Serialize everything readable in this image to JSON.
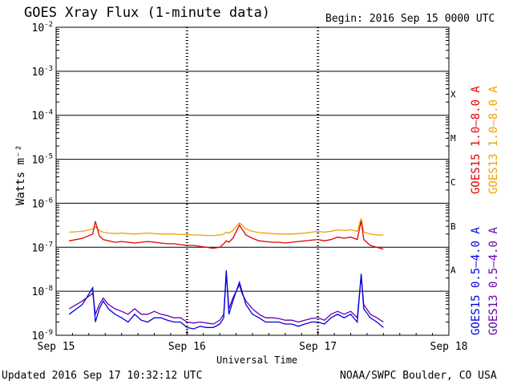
{
  "header": {
    "title": "GOES Xray Flux (1-minute data)",
    "begin": "Begin:  2016 Sep 15 0000 UTC"
  },
  "footer": {
    "updated": "Updated 2016 Sep 17 10:32:12 UTC",
    "credit": "NOAA/SWPC Boulder, CO USA"
  },
  "chart_data": {
    "type": "line",
    "title": "GOES Xray Flux (1-minute data)",
    "xlabel": "Universal Time",
    "ylabel": "Watts m⁻²",
    "yscale": "log",
    "ylim": [
      1e-09,
      0.01
    ],
    "y_ticks": [
      {
        "base": "10",
        "exp": "-9",
        "value": 1e-09
      },
      {
        "base": "10",
        "exp": "-8",
        "value": 1e-08
      },
      {
        "base": "10",
        "exp": "-7",
        "value": 1e-07
      },
      {
        "base": "10",
        "exp": "-6",
        "value": 1e-06
      },
      {
        "base": "10",
        "exp": "-5",
        "value": 1e-05
      },
      {
        "base": "10",
        "exp": "-4",
        "value": 0.0001
      },
      {
        "base": "10",
        "exp": "-3",
        "value": 0.001
      },
      {
        "base": "10",
        "exp": "-2",
        "value": 0.01
      }
    ],
    "x_unit": "days since 2016 Sep 15 00:00 UTC",
    "xlim": [
      0,
      3
    ],
    "x_ticks": [
      {
        "label": "Sep 15",
        "value": 0
      },
      {
        "label": "Sep 16",
        "value": 1
      },
      {
        "label": "Sep 17",
        "value": 2
      },
      {
        "label": "Sep 18",
        "value": 3
      }
    ],
    "flare_classes": [
      {
        "label": "A",
        "value": 3.16e-08
      },
      {
        "label": "B",
        "value": 3.16e-07
      },
      {
        "label": "C",
        "value": 3.16e-06
      },
      {
        "label": "M",
        "value": 3.16e-05
      },
      {
        "label": "X",
        "value": 0.000316
      }
    ],
    "series": [
      {
        "name": "GOES15 1.0–8.0 A",
        "color": "#e00000",
        "x": [
          0.1,
          0.2,
          0.28,
          0.3,
          0.33,
          0.36,
          0.4,
          0.45,
          0.5,
          0.55,
          0.6,
          0.65,
          0.7,
          0.75,
          0.8,
          0.85,
          0.9,
          0.95,
          1.0,
          1.05,
          1.1,
          1.15,
          1.2,
          1.25,
          1.28,
          1.3,
          1.32,
          1.35,
          1.4,
          1.42,
          1.45,
          1.5,
          1.55,
          1.6,
          1.65,
          1.7,
          1.75,
          1.8,
          1.85,
          1.9,
          1.95,
          2.0,
          2.05,
          2.1,
          2.15,
          2.2,
          2.25,
          2.3,
          2.33,
          2.35,
          2.4,
          2.45,
          2.5
        ],
        "y": [
          1.4e-07,
          1.6e-07,
          2e-07,
          3.9e-07,
          1.8e-07,
          1.5e-07,
          1.4e-07,
          1.3e-07,
          1.35e-07,
          1.3e-07,
          1.25e-07,
          1.3e-07,
          1.35e-07,
          1.3e-07,
          1.25e-07,
          1.2e-07,
          1.2e-07,
          1.15e-07,
          1.1e-07,
          1.1e-07,
          1.05e-07,
          1e-07,
          9.5e-08,
          1e-07,
          1.2e-07,
          1.4e-07,
          1.3e-07,
          1.6e-07,
          3.2e-07,
          2.6e-07,
          1.9e-07,
          1.6e-07,
          1.4e-07,
          1.35e-07,
          1.3e-07,
          1.3e-07,
          1.25e-07,
          1.3e-07,
          1.35e-07,
          1.4e-07,
          1.45e-07,
          1.5e-07,
          1.4e-07,
          1.5e-07,
          1.7e-07,
          1.6e-07,
          1.7e-07,
          1.5e-07,
          4e-07,
          1.5e-07,
          1.1e-07,
          1e-07,
          9e-08
        ]
      },
      {
        "name": "GOES13 1.0–8.0 A",
        "color": "#f0a000",
        "x": [
          0.1,
          0.2,
          0.28,
          0.3,
          0.33,
          0.36,
          0.4,
          0.45,
          0.5,
          0.55,
          0.6,
          0.65,
          0.7,
          0.75,
          0.8,
          0.85,
          0.9,
          0.95,
          1.0,
          1.05,
          1.1,
          1.15,
          1.2,
          1.25,
          1.28,
          1.3,
          1.32,
          1.35,
          1.4,
          1.42,
          1.45,
          1.5,
          1.55,
          1.6,
          1.65,
          1.7,
          1.75,
          1.8,
          1.85,
          1.9,
          1.95,
          2.0,
          2.05,
          2.1,
          2.15,
          2.2,
          2.25,
          2.3,
          2.33,
          2.35,
          2.4,
          2.45,
          2.5
        ],
        "y": [
          2.2e-07,
          2.3e-07,
          2.6e-07,
          2.9e-07,
          2.4e-07,
          2.2e-07,
          2.1e-07,
          2.05e-07,
          2.1e-07,
          2.05e-07,
          2e-07,
          2.05e-07,
          2.1e-07,
          2.05e-07,
          2e-07,
          2e-07,
          2e-07,
          1.95e-07,
          1.95e-07,
          1.9e-07,
          1.9e-07,
          1.85e-07,
          1.85e-07,
          1.9e-07,
          2e-07,
          2.2e-07,
          2.1e-07,
          2.4e-07,
          3.6e-07,
          3.2e-07,
          2.6e-07,
          2.3e-07,
          2.15e-07,
          2.1e-07,
          2.05e-07,
          2e-07,
          2e-07,
          2e-07,
          2.05e-07,
          2.1e-07,
          2.2e-07,
          2.3e-07,
          2.2e-07,
          2.3e-07,
          2.5e-07,
          2.4e-07,
          2.5e-07,
          2.3e-07,
          4.5e-07,
          2.2e-07,
          2e-07,
          1.9e-07,
          1.9e-07
        ]
      },
      {
        "name": "GOES15 0.5–4.0 A",
        "color": "#0000e0",
        "x": [
          0.1,
          0.2,
          0.28,
          0.3,
          0.33,
          0.36,
          0.4,
          0.45,
          0.5,
          0.55,
          0.6,
          0.65,
          0.7,
          0.75,
          0.8,
          0.85,
          0.9,
          0.95,
          1.0,
          1.05,
          1.1,
          1.15,
          1.2,
          1.25,
          1.28,
          1.3,
          1.32,
          1.35,
          1.4,
          1.42,
          1.45,
          1.5,
          1.55,
          1.6,
          1.65,
          1.7,
          1.75,
          1.8,
          1.85,
          1.9,
          1.95,
          2.0,
          2.05,
          2.1,
          2.15,
          2.2,
          2.25,
          2.3,
          2.33,
          2.35,
          2.4,
          2.45,
          2.5
        ],
        "y": [
          3e-09,
          5e-09,
          1.2e-08,
          2e-09,
          4e-09,
          6e-09,
          4e-09,
          3e-09,
          2.5e-09,
          2e-09,
          3e-09,
          2.2e-09,
          2e-09,
          2.5e-09,
          2.5e-09,
          2.2e-09,
          2e-09,
          2e-09,
          1.5e-09,
          1.4e-09,
          1.6e-09,
          1.5e-09,
          1.5e-09,
          1.8e-09,
          2.5e-09,
          3e-08,
          3e-09,
          6e-09,
          1.6e-08,
          1e-08,
          5e-09,
          3e-09,
          2.5e-09,
          2e-09,
          2e-09,
          2e-09,
          1.8e-09,
          1.8e-09,
          1.6e-09,
          1.8e-09,
          2e-09,
          2e-09,
          1.8e-09,
          2.5e-09,
          3e-09,
          2.5e-09,
          3e-09,
          2e-09,
          2.5e-08,
          4e-09,
          2.5e-09,
          2e-09,
          1.5e-09
        ]
      },
      {
        "name": "GOES13 0.5–4.0 A",
        "color": "#6600aa",
        "x": [
          0.1,
          0.2,
          0.28,
          0.3,
          0.33,
          0.36,
          0.4,
          0.45,
          0.5,
          0.55,
          0.6,
          0.65,
          0.7,
          0.75,
          0.8,
          0.85,
          0.9,
          0.95,
          1.0,
          1.05,
          1.1,
          1.15,
          1.2,
          1.25,
          1.28,
          1.3,
          1.32,
          1.35,
          1.4,
          1.42,
          1.45,
          1.5,
          1.55,
          1.6,
          1.65,
          1.7,
          1.75,
          1.8,
          1.85,
          1.9,
          1.95,
          2.0,
          2.05,
          2.1,
          2.15,
          2.2,
          2.25,
          2.3,
          2.33,
          2.35,
          2.4,
          2.45,
          2.5
        ],
        "y": [
          4e-09,
          6e-09,
          9e-09,
          3e-09,
          5e-09,
          7e-09,
          5e-09,
          4e-09,
          3.5e-09,
          3e-09,
          4e-09,
          3e-09,
          3e-09,
          3.5e-09,
          3e-09,
          2.8e-09,
          2.5e-09,
          2.5e-09,
          2e-09,
          1.9e-09,
          2e-09,
          1.9e-09,
          1.8e-09,
          2.2e-09,
          3e-09,
          2.5e-08,
          4e-09,
          7e-09,
          1.4e-08,
          9e-09,
          6e-09,
          4e-09,
          3e-09,
          2.5e-09,
          2.5e-09,
          2.4e-09,
          2.2e-09,
          2.2e-09,
          2e-09,
          2.2e-09,
          2.4e-09,
          2.5e-09,
          2.2e-09,
          3e-09,
          3.5e-09,
          3e-09,
          3.5e-09,
          2.5e-09,
          2.2e-08,
          5e-09,
          3e-09,
          2.5e-09,
          2e-09
        ]
      }
    ]
  }
}
